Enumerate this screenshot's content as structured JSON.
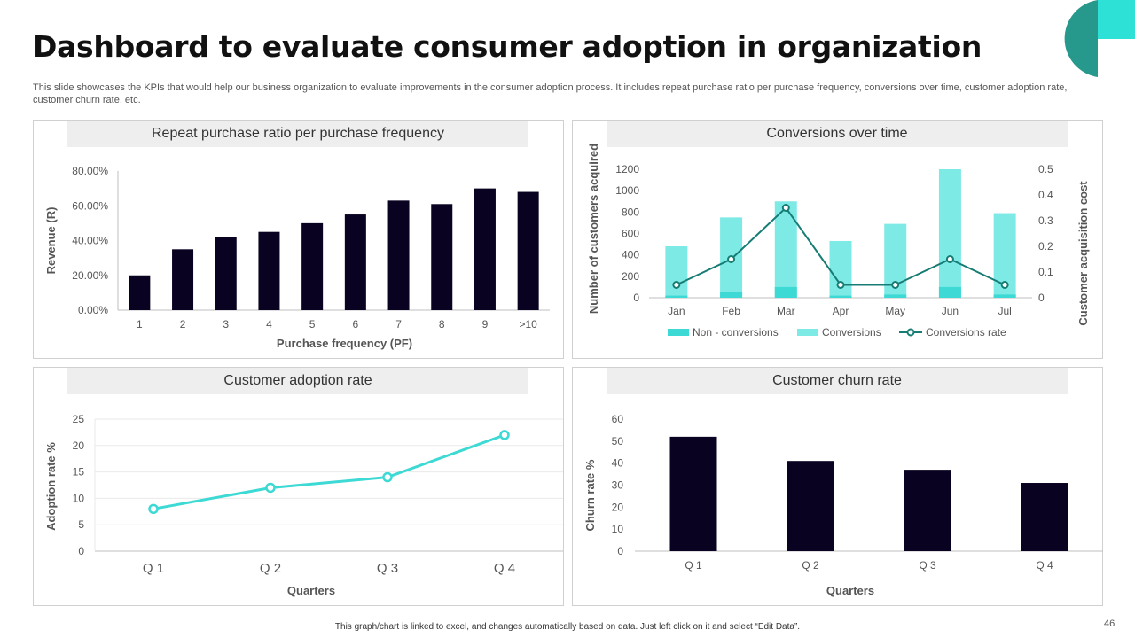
{
  "slide": {
    "title": "Dashboard to evaluate consumer adoption in organization",
    "subtitle": "This slide showcases the KPIs that would help our business organization to evaluate improvements in the consumer adoption process. It includes repeat purchase ratio per purchase frequency, conversions over time, customer adoption rate, customer churn rate, etc.",
    "footnote": "This graph/chart is linked to excel, and changes automatically based on data. Just left click on it and select “Edit Data”.",
    "page_number": "46",
    "colors": {
      "navy": "#0a0221",
      "teal": "#3dd9d4",
      "teal_light": "#7eeae6",
      "teal_dark": "#177c74",
      "deco_dark": "#26988c",
      "deco_light": "#2ee1d6"
    }
  },
  "chart_data": [
    {
      "id": "repeat",
      "type": "bar",
      "title": "Repeat purchase ratio per purchase frequency",
      "xlabel": "Purchase frequency (PF)",
      "ylabel": "Revenue (R)",
      "categories": [
        "1",
        "2",
        "3",
        "4",
        "5",
        "6",
        "7",
        "8",
        "9",
        ">10"
      ],
      "values": [
        20,
        35,
        42,
        45,
        50,
        55,
        63,
        61,
        70,
        68
      ],
      "ylim": [
        0,
        80
      ],
      "yticks": [
        "0.00%",
        "20.00%",
        "40.00%",
        "60.00%",
        "80.00%"
      ],
      "grid": false
    },
    {
      "id": "conversions",
      "type": "bar",
      "title": "Conversions over time",
      "categories": [
        "Jan",
        "Feb",
        "Mar",
        "Apr",
        "May",
        "Jun",
        "Jul"
      ],
      "series": [
        {
          "name": "Non - conversions",
          "type": "bar",
          "axis": "left",
          "values": [
            20,
            50,
            100,
            20,
            30,
            100,
            30
          ]
        },
        {
          "name": "Conversions",
          "type": "bar",
          "axis": "left",
          "values": [
            480,
            750,
            900,
            530,
            690,
            1200,
            790
          ]
        },
        {
          "name": "Conversions rate",
          "type": "line",
          "axis": "right",
          "values": [
            0.05,
            0.15,
            0.35,
            0.05,
            0.05,
            0.15,
            0.05
          ]
        }
      ],
      "ylabel": "Number of customers acquired",
      "y2label": "Customer acquisition cost",
      "ylim": [
        0,
        1200
      ],
      "y2lim": [
        0,
        0.5
      ],
      "yticks": [
        "0",
        "200",
        "400",
        "600",
        "800",
        "1000",
        "1200"
      ],
      "y2ticks": [
        "0",
        "0.1",
        "0.2",
        "0.3",
        "0.4",
        "0.5"
      ],
      "legend": "bottom"
    },
    {
      "id": "adoption",
      "type": "line",
      "title": "Customer adoption rate",
      "xlabel": "Quarters",
      "ylabel": "Adoption rate %",
      "categories": [
        "Q 1",
        "Q 2",
        "Q 3",
        "Q 4"
      ],
      "values": [
        8,
        12,
        14,
        22
      ],
      "ylim": [
        0,
        25
      ],
      "yticks": [
        "0",
        "5",
        "10",
        "15",
        "20",
        "25"
      ],
      "grid": true
    },
    {
      "id": "churn",
      "type": "bar",
      "title": "Customer churn rate",
      "xlabel": "Quarters",
      "ylabel": "Churn rate %",
      "categories": [
        "Q 1",
        "Q 2",
        "Q 3",
        "Q 4"
      ],
      "values": [
        52,
        41,
        37,
        31
      ],
      "ylim": [
        0,
        60
      ],
      "yticks": [
        "0",
        "10",
        "20",
        "30",
        "40",
        "50",
        "60"
      ],
      "grid": false
    }
  ]
}
